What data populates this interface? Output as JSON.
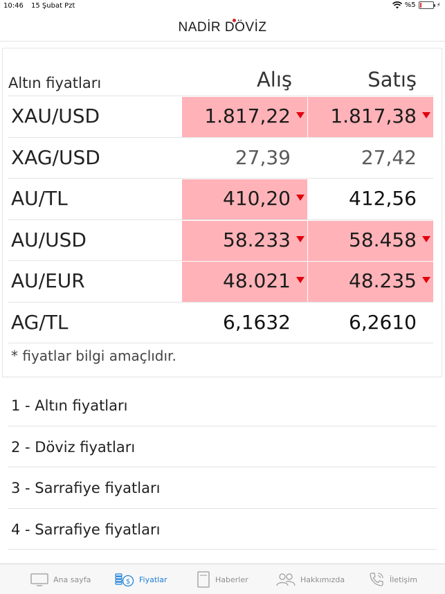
{
  "status_bar": {
    "time": "10:46",
    "date": "15 Şubat Pzt",
    "battery": "%5"
  },
  "header": {
    "logo": "NADİR DÖVİZ"
  },
  "prices": {
    "title": "Altın fiyatları",
    "col_buy": "Alış",
    "col_sell": "Satış",
    "rows": [
      {
        "name": "XAU/USD",
        "buy": "1.817,22",
        "sell": "1.817,38",
        "buy_down": true,
        "sell_down": true
      },
      {
        "name": "XAG/USD",
        "buy": "27,39",
        "sell": "27,42",
        "buy_down": false,
        "sell_down": false
      },
      {
        "name": "AU/TL",
        "buy": "410,20",
        "sell": "412,56",
        "buy_down": true,
        "sell_down": false
      },
      {
        "name": "AU/USD",
        "buy": "58.233",
        "sell": "58.458",
        "buy_down": true,
        "sell_down": true
      },
      {
        "name": "AU/EUR",
        "buy": "48.021",
        "sell": "48.235",
        "buy_down": true,
        "sell_down": true
      },
      {
        "name": "AG/TL",
        "buy": "6,1632",
        "sell": "6,2610",
        "buy_down": false,
        "sell_down": false
      }
    ],
    "note": "* fiyatlar bilgi amaçlıdır."
  },
  "menu": [
    "1 - Altın fiyatları",
    "2 - Döviz fiyatları",
    "3 - Sarrafiye fiyatları",
    "4 - Sarrafiye fiyatları"
  ],
  "tabbar": {
    "items": [
      {
        "label": "Ana sayfa",
        "icon": "monitor-icon"
      },
      {
        "label": "Fiyatlar",
        "icon": "coins-icon"
      },
      {
        "label": "Haberler",
        "icon": "newspaper-icon"
      },
      {
        "label": "Hakkımızda",
        "icon": "people-icon"
      },
      {
        "label": "İletişim",
        "icon": "phone-icon"
      }
    ],
    "active": "Fiyatlar"
  },
  "colors": {
    "down_highlight": "#ffb3b8",
    "down_arrow": "#e0000f",
    "active_tab": "#1d7fd6",
    "logo_dot": "#d8232a"
  }
}
